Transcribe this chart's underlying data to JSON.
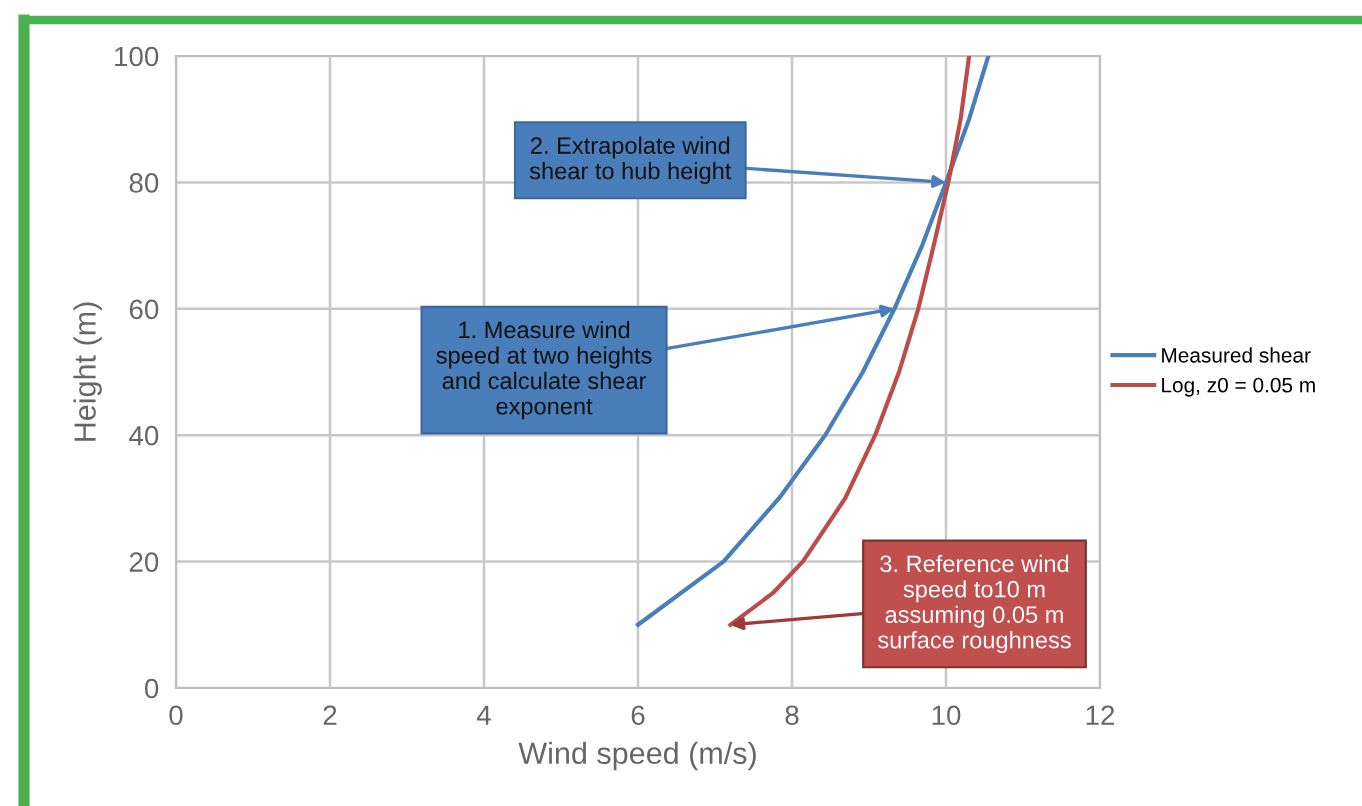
{
  "chart_data": {
    "type": "line",
    "xlabel": "Wind speed (m/s)",
    "ylabel": "Height (m)",
    "series": [
      {
        "name": "Measured shear",
        "color": "#4a7ebb",
        "x": [
          6.0,
          7.11,
          7.83,
          8.43,
          8.92,
          9.33,
          9.69,
          10.0,
          10.3,
          10.55
        ],
        "values": [
          10,
          20,
          30,
          40,
          50,
          60,
          70,
          80,
          90,
          100
        ]
      },
      {
        "name": "Log, z0 = 0.05 m",
        "color": "#be4b48",
        "x": [
          7.2,
          7.75,
          8.14,
          8.69,
          9.08,
          9.39,
          9.64,
          9.84,
          10.03,
          10.19,
          10.3
        ],
        "values": [
          10,
          15,
          20,
          30,
          40,
          50,
          60,
          70,
          80,
          90,
          100
        ]
      }
    ],
    "annotations": [
      {
        "text": "1. Measure wind\nspeed at two heights\nand calculate shear\nexponent",
        "x": 9.33,
        "y": 60
      },
      {
        "text": "2. Extrapolate wind\nshear to hub height",
        "x": 10.0,
        "y": 80
      },
      {
        "text": "3. Reference wind\nspeed to10 m\nassuming 0.05 m\nsurface roughness",
        "x": 7.2,
        "y": 10
      }
    ],
    "xlim": [
      0,
      12
    ],
    "xticks": [
      0,
      2,
      4,
      6,
      8,
      10,
      12
    ],
    "ylim": [
      0,
      100
    ],
    "yticks": [
      0,
      20,
      40,
      60,
      80,
      100
    ],
    "grid": true,
    "legend": "right",
    "marker": "none",
    "line_style": "solid"
  }
}
